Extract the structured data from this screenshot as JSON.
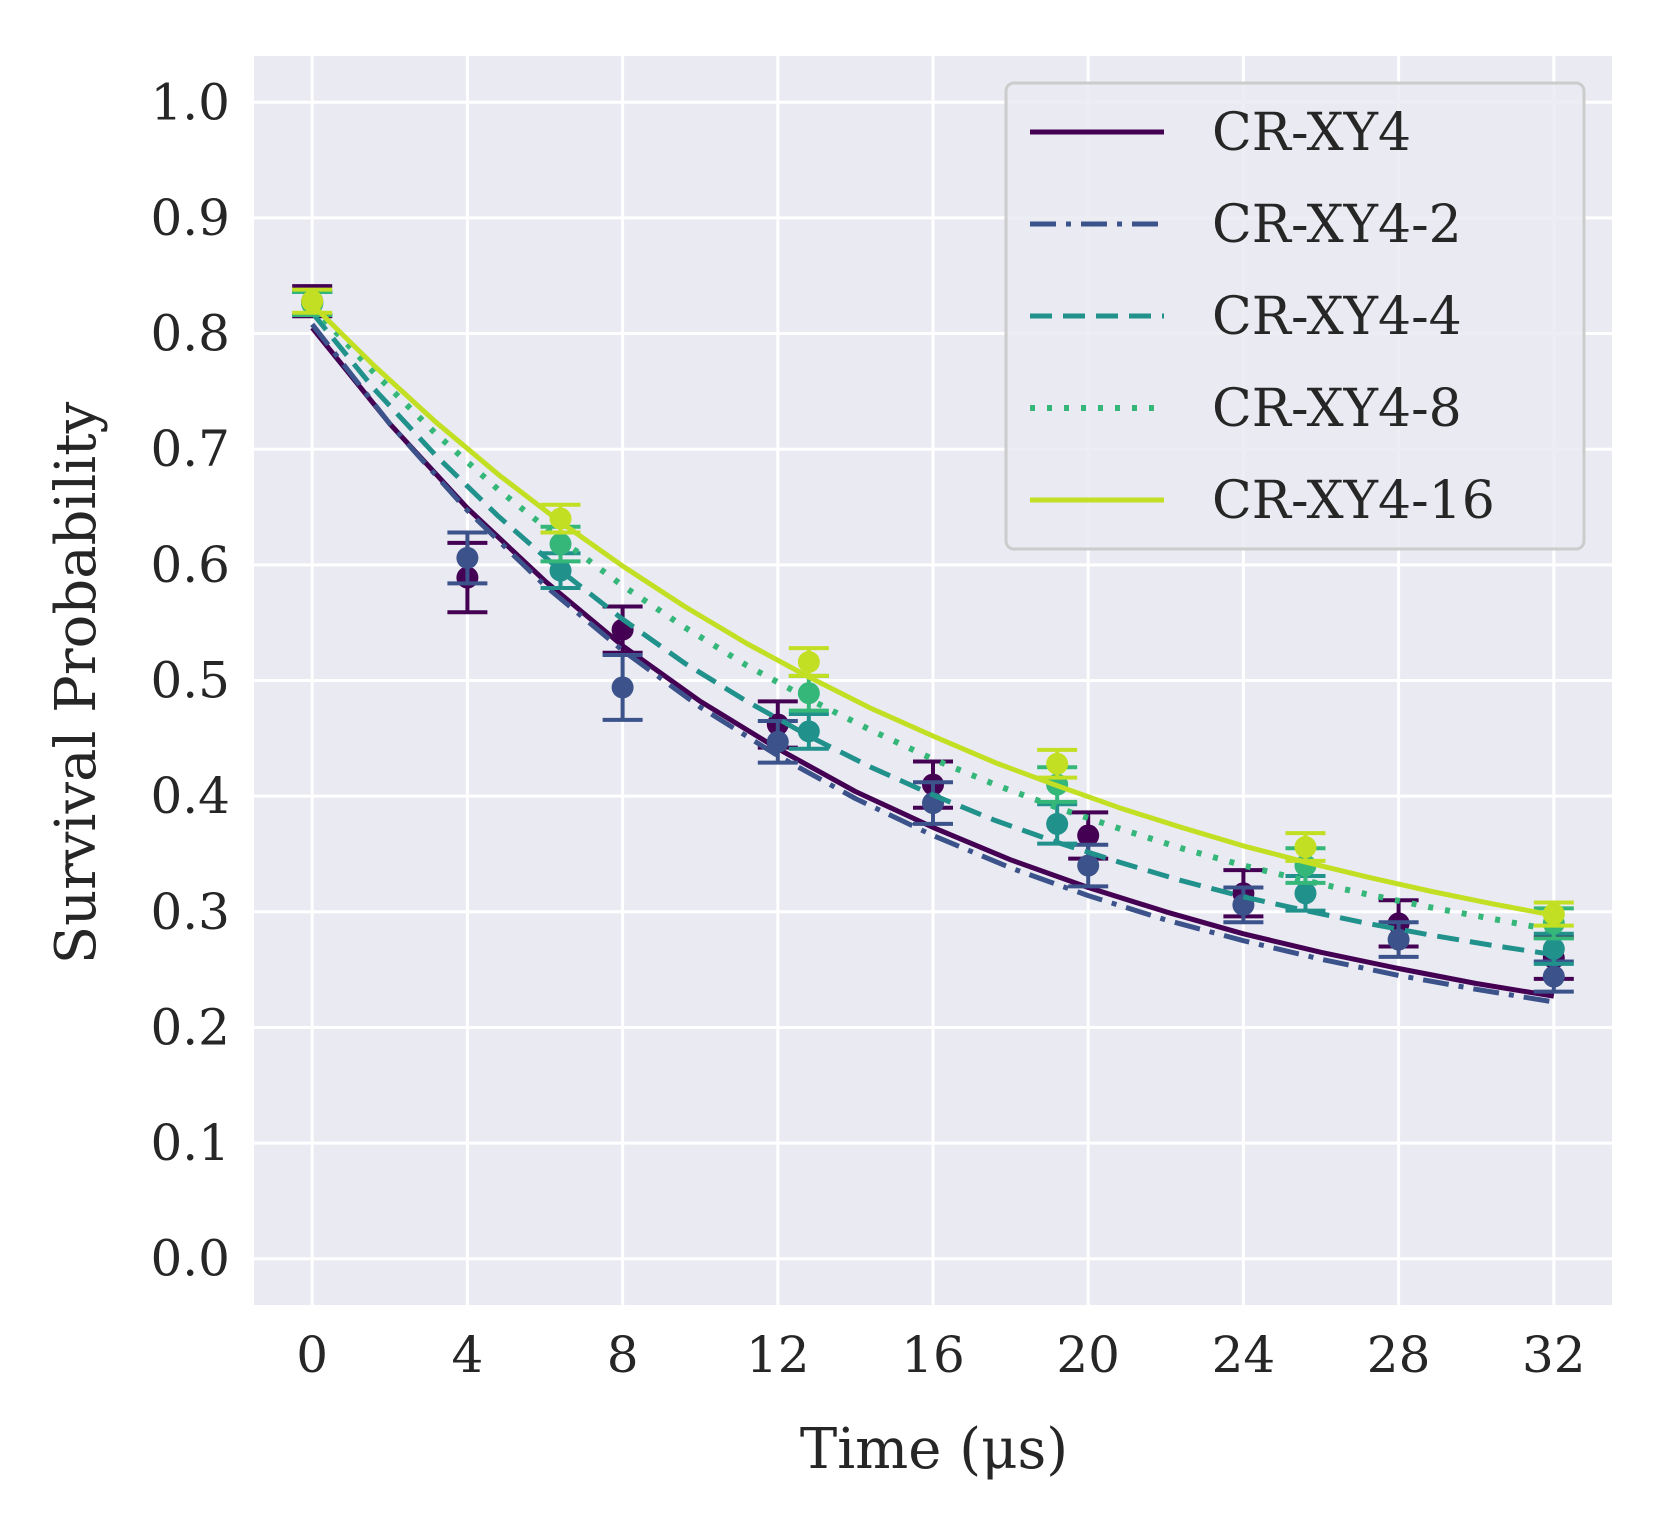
{
  "chart_data": {
    "type": "line",
    "xlabel": "Time (μs)",
    "ylabel": "Survival Probability",
    "xlim": [
      -1.5,
      33.5
    ],
    "ylim": [
      -0.04,
      1.04
    ],
    "xticks": [
      0,
      4,
      8,
      12,
      16,
      20,
      24,
      28,
      32
    ],
    "yticks": [
      0.0,
      0.1,
      0.2,
      0.3,
      0.4,
      0.5,
      0.6,
      0.7,
      0.8,
      0.9,
      1.0
    ],
    "xtick_labels": [
      "0",
      "4",
      "8",
      "12",
      "16",
      "20",
      "24",
      "28",
      "32"
    ],
    "ytick_labels": [
      "0.0",
      "0.1",
      "0.2",
      "0.3",
      "0.4",
      "0.5",
      "0.6",
      "0.7",
      "0.8",
      "0.9",
      "1.0"
    ],
    "grid": true,
    "background": "#eaeaf2",
    "legend_position": "top-right",
    "series": [
      {
        "name": "CR-XY4",
        "color": "#440154",
        "line_style": "solid",
        "fit_x": [
          0,
          2,
          4,
          6,
          8,
          10,
          12,
          14,
          16,
          18,
          20,
          22,
          24,
          26,
          28,
          30,
          32
        ],
        "fit_y": [
          0.805,
          0.722,
          0.649,
          0.586,
          0.53,
          0.482,
          0.441,
          0.404,
          0.373,
          0.345,
          0.321,
          0.3,
          0.281,
          0.265,
          0.251,
          0.238,
          0.227
        ],
        "points": [
          {
            "x": 0,
            "y": 0.828,
            "err": 0.013
          },
          {
            "x": 4,
            "y": 0.589,
            "err": 0.03
          },
          {
            "x": 8,
            "y": 0.544,
            "err": 0.02
          },
          {
            "x": 12,
            "y": 0.462,
            "err": 0.02
          },
          {
            "x": 16,
            "y": 0.41,
            "err": 0.02
          },
          {
            "x": 20,
            "y": 0.366,
            "err": 0.02
          },
          {
            "x": 24,
            "y": 0.316,
            "err": 0.02
          },
          {
            "x": 28,
            "y": 0.29,
            "err": 0.02
          },
          {
            "x": 32,
            "y": 0.26,
            "err": 0.018
          }
        ]
      },
      {
        "name": "CR-XY4-2",
        "color": "#3b528b",
        "line_style": "dashdot",
        "fit_x": [
          0,
          2,
          4,
          6,
          8,
          10,
          12,
          14,
          16,
          18,
          20,
          22,
          24,
          26,
          28,
          30,
          32
        ],
        "fit_y": [
          0.808,
          0.722,
          0.647,
          0.582,
          0.526,
          0.477,
          0.435,
          0.398,
          0.366,
          0.338,
          0.314,
          0.293,
          0.275,
          0.259,
          0.245,
          0.233,
          0.222
        ],
        "points": [
          {
            "x": 0,
            "y": 0.826,
            "err": 0.01
          },
          {
            "x": 4,
            "y": 0.606,
            "err": 0.022
          },
          {
            "x": 8,
            "y": 0.494,
            "err": 0.028
          },
          {
            "x": 12,
            "y": 0.447,
            "err": 0.018
          },
          {
            "x": 16,
            "y": 0.394,
            "err": 0.018
          },
          {
            "x": 20,
            "y": 0.34,
            "err": 0.018
          },
          {
            "x": 24,
            "y": 0.306,
            "err": 0.015
          },
          {
            "x": 28,
            "y": 0.276,
            "err": 0.015
          },
          {
            "x": 32,
            "y": 0.244,
            "err": 0.013
          }
        ]
      },
      {
        "name": "CR-XY4-4",
        "color": "#21918c",
        "line_style": "dashed",
        "fit_x": [
          0,
          1.6,
          3.2,
          4.8,
          6.4,
          8,
          9.6,
          11.2,
          12.8,
          14.4,
          16,
          17.6,
          19.2,
          20.8,
          22.4,
          24,
          25.6,
          27.2,
          28.8,
          30.4,
          32
        ],
        "fit_y": [
          0.818,
          0.752,
          0.694,
          0.642,
          0.595,
          0.553,
          0.515,
          0.482,
          0.452,
          0.425,
          0.401,
          0.379,
          0.36,
          0.343,
          0.327,
          0.313,
          0.301,
          0.29,
          0.28,
          0.271,
          0.263
        ],
        "points": [
          {
            "x": 0,
            "y": 0.826,
            "err": 0.01
          },
          {
            "x": 6.4,
            "y": 0.595,
            "err": 0.015
          },
          {
            "x": 12.8,
            "y": 0.456,
            "err": 0.015
          },
          {
            "x": 19.2,
            "y": 0.376,
            "err": 0.017
          },
          {
            "x": 25.6,
            "y": 0.316,
            "err": 0.015
          },
          {
            "x": 32,
            "y": 0.268,
            "err": 0.013
          }
        ]
      },
      {
        "name": "CR-XY4-8",
        "color": "#35b779",
        "line_style": "dotted",
        "fit_x": [
          0,
          1.6,
          3.2,
          4.8,
          6.4,
          8,
          9.6,
          11.2,
          12.8,
          14.4,
          16,
          17.6,
          19.2,
          20.8,
          22.4,
          24,
          25.6,
          27.2,
          28.8,
          30.4,
          32
        ],
        "fit_y": [
          0.823,
          0.766,
          0.713,
          0.665,
          0.622,
          0.582,
          0.546,
          0.513,
          0.484,
          0.457,
          0.432,
          0.41,
          0.39,
          0.372,
          0.355,
          0.34,
          0.327,
          0.315,
          0.304,
          0.294,
          0.284
        ],
        "points": [
          {
            "x": 0,
            "y": 0.826,
            "err": 0.01
          },
          {
            "x": 6.4,
            "y": 0.618,
            "err": 0.015
          },
          {
            "x": 12.8,
            "y": 0.489,
            "err": 0.015
          },
          {
            "x": 19.2,
            "y": 0.41,
            "err": 0.015
          },
          {
            "x": 25.6,
            "y": 0.34,
            "err": 0.015
          },
          {
            "x": 32,
            "y": 0.29,
            "err": 0.013
          }
        ]
      },
      {
        "name": "CR-XY4-16",
        "color": "#c2df23",
        "line_style": "solid",
        "fit_x": [
          0,
          1.6,
          3.2,
          4.8,
          6.4,
          8,
          9.6,
          11.2,
          12.8,
          14.4,
          16,
          17.6,
          19.2,
          20.8,
          22.4,
          24,
          25.6,
          27.2,
          28.8,
          30.4,
          32
        ],
        "fit_y": [
          0.825,
          0.772,
          0.723,
          0.678,
          0.637,
          0.599,
          0.564,
          0.532,
          0.503,
          0.476,
          0.452,
          0.429,
          0.409,
          0.39,
          0.373,
          0.357,
          0.343,
          0.33,
          0.318,
          0.307,
          0.297
        ],
        "points": [
          {
            "x": 0,
            "y": 0.828,
            "err": 0.01
          },
          {
            "x": 6.4,
            "y": 0.64,
            "err": 0.012
          },
          {
            "x": 12.8,
            "y": 0.516,
            "err": 0.012
          },
          {
            "x": 19.2,
            "y": 0.428,
            "err": 0.012
          },
          {
            "x": 25.6,
            "y": 0.356,
            "err": 0.012
          },
          {
            "x": 32,
            "y": 0.298,
            "err": 0.01
          }
        ]
      }
    ]
  }
}
